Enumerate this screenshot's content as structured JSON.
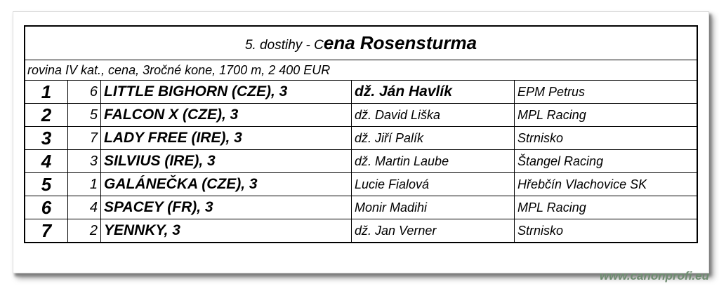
{
  "title_prefix": "5. dostihy - C",
  "title_main": "ena Rosensturma",
  "subtitle": "rovina IV kat., cena, 3ročné kone, 1700 m, 2 400 EUR",
  "rows": [
    {
      "pos": "1",
      "num": "6",
      "horse": "LITTLE BIGHORN (CZE), 3",
      "jockey": "dž. Ján Havlík",
      "owner": "EPM Petrus",
      "jockey_bold": true
    },
    {
      "pos": "2",
      "num": "5",
      "horse": "FALCON X (CZE), 3",
      "jockey": "dž. David Liška",
      "owner": "MPL Racing"
    },
    {
      "pos": "3",
      "num": "7",
      "horse": "LADY FREE (IRE), 3",
      "jockey": "dž. Jiří Palík",
      "owner": "Strnisko"
    },
    {
      "pos": "4",
      "num": "3",
      "horse": "SILVIUS (IRE), 3",
      "jockey": "dž. Martin Laube",
      "owner": "Štangel Racing"
    },
    {
      "pos": "5",
      "num": "1",
      "horse": "GALÁNEČKA (CZE), 3",
      "jockey": "Lucie Fialová",
      "owner": "Hřebčín Vlachovice SK"
    },
    {
      "pos": "6",
      "num": "4",
      "horse": "SPACEY (FR), 3",
      "jockey": "Monir Madihi",
      "owner": "MPL Racing"
    },
    {
      "pos": "7",
      "num": "2",
      "horse": "YENNKY, 3",
      "jockey": "dž. Jan Verner",
      "owner": "Strnisko"
    }
  ],
  "watermark": "www.canonprofi.eu"
}
